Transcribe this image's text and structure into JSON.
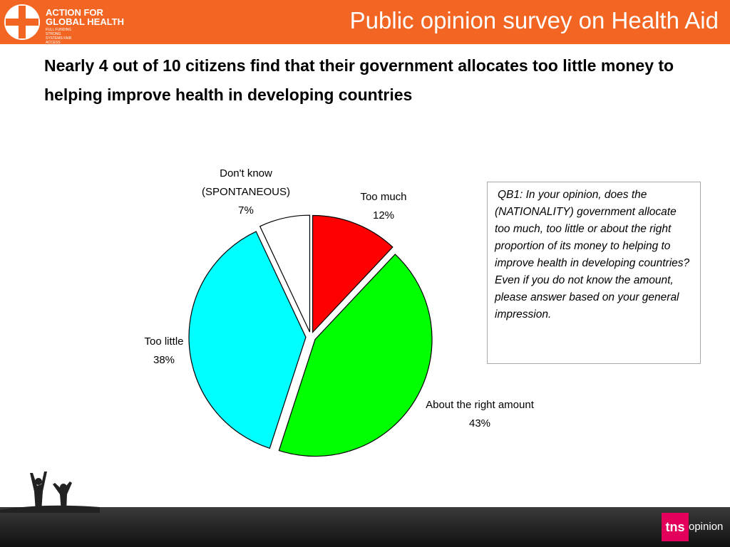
{
  "header": {
    "logo_line1": "ACTION FOR",
    "logo_line2": "GLOBAL HEALTH",
    "logo_tagline": "FULL FUNDING STRONG SYSTEMS FAIR ACCESS",
    "title": "Public opinion survey on Health Aid"
  },
  "headline": "Nearly 4 out of 10 citizens find that their government allocates too little money to helping improve health in developing countries",
  "question": "QB1: In your opinion, does the (NATIONALITY) government allocate too much, too little or about the right proportion of its money to helping to improve health in developing countries? Even if you do not know the amount, please answer based on your general impression.",
  "footer": {
    "logo_brand": "tns",
    "logo_suffix": "opinion"
  },
  "chart_data": {
    "type": "pie",
    "categories": [
      "Too much",
      "About the right amount",
      "Too little",
      "Don't know (SPONTANEOUS)"
    ],
    "values": [
      12,
      43,
      38,
      7
    ],
    "value_labels": [
      "12%",
      "43%",
      "38%",
      "7%"
    ],
    "colors": [
      "#ff0000",
      "#00ff00",
      "#00ffff",
      "#ffffff"
    ]
  }
}
